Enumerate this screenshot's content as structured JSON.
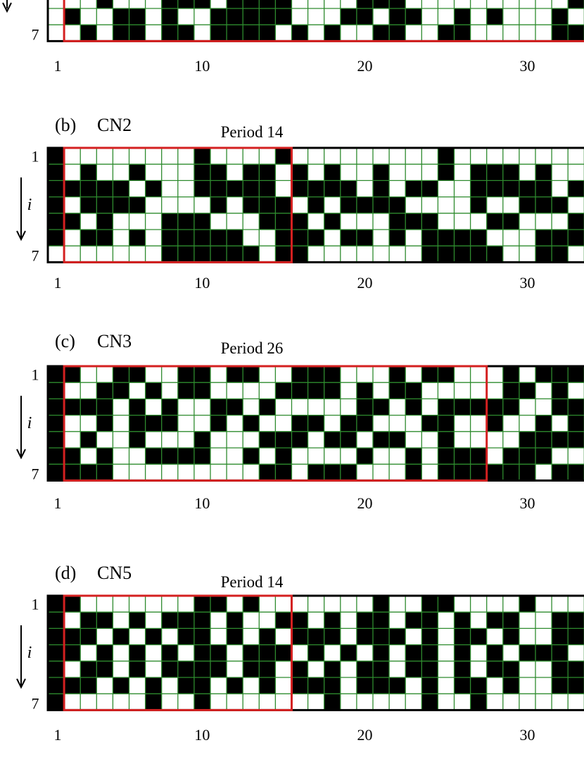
{
  "colors": {
    "filled": "#000000",
    "empty": "#ffffff",
    "grid": "#2e8b2e",
    "period_box": "#d42020",
    "border": "#000000"
  },
  "row_labels": {
    "top": "1",
    "bottom": "7",
    "index": "i"
  },
  "x_ticks": [
    {
      "value": 1,
      "label": "1"
    },
    {
      "value": 10,
      "label": "10"
    },
    {
      "value": 20,
      "label": "20"
    },
    {
      "value": 30,
      "label": "30"
    }
  ],
  "panels": [
    {
      "id": "a",
      "letter": "",
      "name": "",
      "period_label": "",
      "period": null,
      "first_column": 1,
      "rows": [
        "0001000111011110000111000000000011101111",
        "0100110100111110001101100101000100111010",
        "0010110110111101010011001100000110110101"
      ]
    },
    {
      "id": "b",
      "letter": "(b)",
      "name": "CN2",
      "period_label": "Period 14",
      "period": 14,
      "first_column": 1,
      "rows": [
        "1000000001000010000000001000000000100000",
        "1010010001101101010010001011101001010000",
        "1111101001111101111010110011111011111110",
        "1011110000101110101111000010011101011110",
        "1101000111000111010001110001100011101000",
        "1011010111110011101101011110001110110100",
        "0000000111111011000000011111001100000010"
      ]
    },
    {
      "id": "c",
      "letter": "(c)",
      "name": "CN3",
      "period_label": "Period 26",
      "period": 26,
      "first_column": 1,
      "rows": [
        "1100110011011001110001011000101110010000",
        "1001101011000011110101100000110101100100",
        "1111010100110100000110101111100110010100",
        "1001011100101001101100011001001011001010",
        "1010010001000111011011001000011110011000",
        "1101001111001010000100101110111001111101",
        "1111000000000110111000101111110111010011"
      ]
    },
    {
      "id": "d",
      "letter": "(d)",
      "name": "CN5",
      "period_label": "Period 14",
      "period": 14,
      "first_column": 1,
      "rows": [
        "1100000001101000000010011000010000000000",
        "1011010111010011010110110101100110101100",
        "1110101011010101110111010110100111011011",
        "1101010101101110101010110101011101101011",
        "1011010111101101010110110101100110101100",
        "1110101011010101110111010110100111011011",
        "1000001001000000010000010010000000100100"
      ]
    }
  ]
}
